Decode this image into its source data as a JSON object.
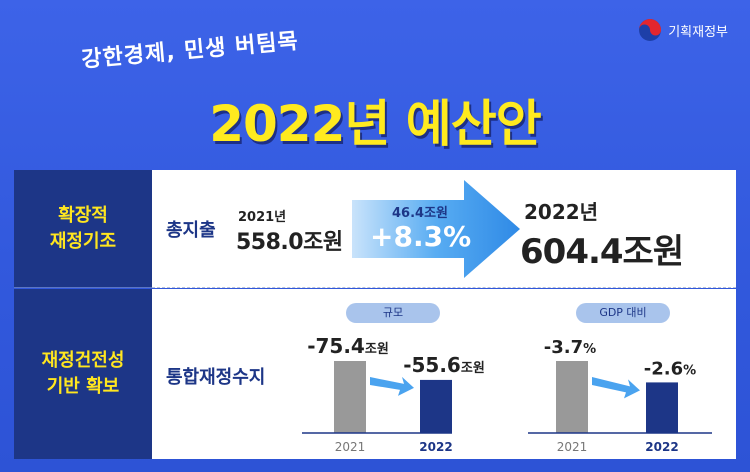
{
  "logo": {
    "text": "기획재정부"
  },
  "slogan": "강한경제, 민생 버팀목",
  "title": "2022년 예산안",
  "rows": [
    {
      "label_line1": "확장적",
      "label_line2": "재정기조"
    },
    {
      "label_line1": "재정건전성",
      "label_line2": "기반 확보"
    }
  ],
  "total": {
    "label": "총지출",
    "from_year": "2021년",
    "from_amount": "558.0조원",
    "increase_amount": "46.4조원",
    "increase_pct": "+8.3%",
    "to_year": "2022년",
    "to_amount": "604.4조원"
  },
  "balance": {
    "label": "통합재정수지"
  },
  "chart_data": [
    {
      "type": "bar",
      "title": "규모",
      "categories": [
        "2021",
        "2022"
      ],
      "values": [
        -75.4,
        -55.6
      ],
      "value_labels": [
        "-75.4",
        "-55.6"
      ],
      "unit": "조원",
      "colors": [
        "#999999",
        "#1d3687"
      ]
    },
    {
      "type": "bar",
      "title": "GDP 대비",
      "categories": [
        "2021",
        "2022"
      ],
      "values": [
        -3.7,
        -2.6
      ],
      "value_labels": [
        "-3.7",
        "-2.6"
      ],
      "unit": "%",
      "colors": [
        "#999999",
        "#1d3687"
      ]
    }
  ]
}
